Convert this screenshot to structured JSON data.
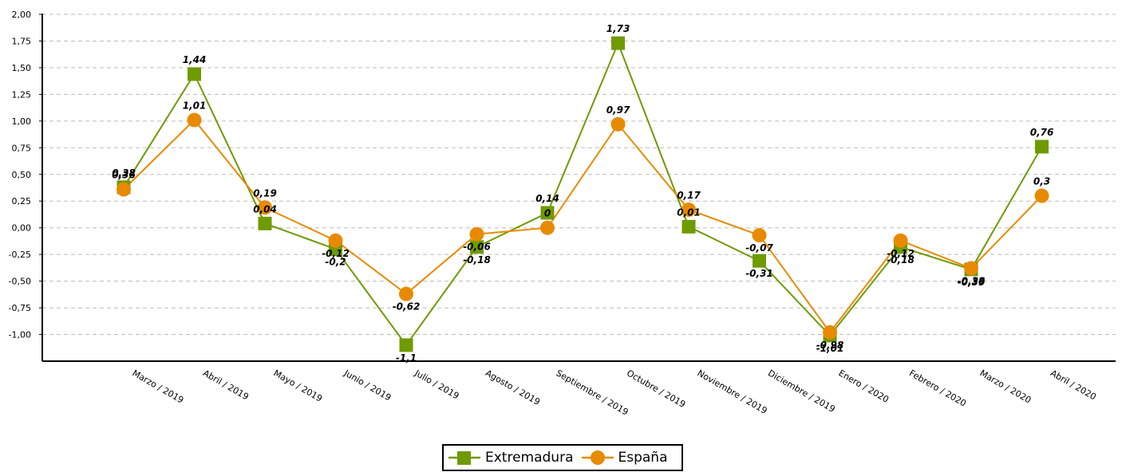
{
  "chart_data": {
    "type": "line",
    "categories": [
      "Marzo / 2019",
      "Abril / 2019",
      "Mayo / 2019",
      "Junio / 2019",
      "Julio / 2019",
      "Agosto / 2019",
      "Septiembre / 2019",
      "Octubre / 2019",
      "Noviembre / 2019",
      "Diciembre / 2019",
      "Enero / 2020",
      "Febrero / 2020",
      "Marzo / 2020",
      "Abril / 2020"
    ],
    "series": [
      {
        "name": "Extremadura",
        "color": "#6f9a00",
        "marker": "square",
        "values": [
          0.38,
          1.44,
          0.04,
          -0.2,
          -1.1,
          -0.18,
          0.14,
          1.73,
          0.01,
          -0.31,
          -1.01,
          -0.18,
          -0.39,
          0.76
        ],
        "labels": [
          "0,38",
          "1,44",
          "0,04",
          "-0,2",
          "-1,1",
          "-0,18",
          "0,14",
          "1,73",
          "0,01",
          "-0,31",
          "-1,01",
          "-0,18",
          "-0,39",
          "0,76"
        ]
      },
      {
        "name": "España",
        "color": "#e88a00",
        "marker": "circle",
        "values": [
          0.36,
          1.01,
          0.19,
          -0.12,
          -0.62,
          -0.06,
          0,
          0.97,
          0.17,
          -0.07,
          -0.98,
          -0.12,
          -0.38,
          0.3
        ],
        "labels": [
          "0,36",
          "1,01",
          "0,19",
          "-0,12",
          "-0,62",
          "-0,06",
          "0",
          "0,97",
          "0,17",
          "-0,07",
          "-0,98",
          "-0,12",
          "-0,38",
          "0,3"
        ]
      }
    ],
    "y_ticks": [
      2.0,
      1.75,
      1.5,
      1.25,
      1.0,
      0.75,
      0.5,
      0.25,
      0.0,
      -0.25,
      -0.5,
      -0.75,
      -1.0
    ],
    "y_tick_labels": [
      "2,00",
      "1,75",
      "1,50",
      "1,25",
      "1,00",
      "0,75",
      "0,50",
      "0,25",
      "0,00",
      "-0,25",
      "-0,50",
      "-0,75",
      "-1,00"
    ],
    "ylim": [
      -1.25,
      2.0
    ],
    "grid": true,
    "legend_position": "bottom-center"
  }
}
